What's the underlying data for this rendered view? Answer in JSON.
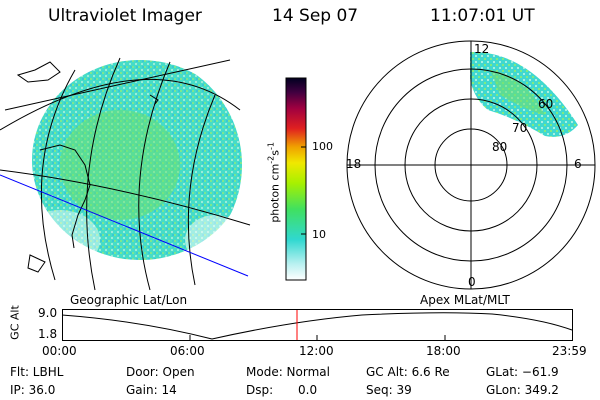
{
  "header": {
    "instrument": "Ultraviolet Imager",
    "date": "14 Sep 07",
    "time": "11:07:01 UT"
  },
  "colorbar": {
    "unit_label": "photon cm",
    "unit_exp1": "-2",
    "unit_mid": "s",
    "unit_exp2": "-1",
    "ticks": [
      "100",
      "10"
    ]
  },
  "left_panel": {
    "caption": "Geographic Lat/Lon"
  },
  "right_panel": {
    "caption": "Apex MLat/MLT",
    "mlt_labels": {
      "top": "12",
      "left": "18",
      "right": "6",
      "bottom": "0"
    },
    "lat_labels": [
      "60",
      "70",
      "80"
    ]
  },
  "altitude_plot": {
    "ylabel": "GC Alt",
    "yticks": [
      "9.0",
      "1.8"
    ],
    "xticks": [
      "00:00",
      "06:00",
      "12:00",
      "18:00",
      "23:59"
    ],
    "current_time_color": "#ff0000"
  },
  "footer": {
    "flt_label": "Flt: LBHL",
    "door_label": "Door: Open",
    "mode_label": "Mode: Normal",
    "gcalt_label": "GC Alt: 6.6 Re",
    "glat_label": "GLat: −61.9",
    "ip_label": "IP: 36.0",
    "gain_label": "Gain: 14",
    "dsp_label": "Dsp:",
    "dsp_value": "0.0",
    "seq_label": "Seq: 39",
    "glon_label": "GLon: 349.2"
  },
  "colors": {
    "aurora_cyan": "#40e0c8",
    "aurora_green": "#60e060",
    "aurora_light": "#b8f0e8",
    "track_blue": "#0000ff",
    "marker_red": "#ff0000"
  }
}
